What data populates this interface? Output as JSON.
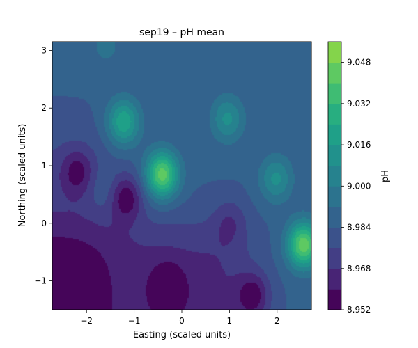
{
  "chart_data": {
    "type": "heatmap",
    "subtype": "filled-contour",
    "title": "sep19 – pH mean",
    "xlabel": "Easting (scaled units)",
    "ylabel": "Northing (scaled units)",
    "xlim": [
      -2.72,
      2.72
    ],
    "ylim": [
      -1.5,
      3.15
    ],
    "x_ticks": [
      -2,
      -1,
      0,
      1,
      2
    ],
    "y_ticks": [
      -1,
      0,
      1,
      2,
      3
    ],
    "x_tick_labels": [
      "−2",
      "−1",
      "0",
      "1",
      "2"
    ],
    "y_tick_labels": [
      "−1",
      "0",
      "1",
      "2",
      "3"
    ],
    "colorbar": {
      "label": "pH",
      "min": 8.952,
      "max": 9.056,
      "tick_values": [
        8.952,
        8.968,
        8.984,
        9.0,
        9.016,
        9.032,
        9.048
      ],
      "tick_labels": [
        "8.952",
        "8.968",
        "8.984",
        "9.000",
        "9.016",
        "9.032",
        "9.048"
      ],
      "levels": [
        8.952,
        8.96,
        8.968,
        8.976,
        8.984,
        8.992,
        9.0,
        9.008,
        9.016,
        9.024,
        9.032,
        9.04,
        9.048,
        9.056
      ],
      "colors": [
        "#450559",
        "#482475",
        "#433e85",
        "#3b528b",
        "#33638d",
        "#2c738e",
        "#26828e",
        "#21918c",
        "#1fa088",
        "#28ae80",
        "#3fbc73",
        "#5ec962",
        "#84d44b",
        "#addc30",
        "#d8e219",
        "#fde725"
      ]
    },
    "baseline": 8.985,
    "features": [
      {
        "kind": "peak",
        "x": -0.42,
        "y": 0.85,
        "value": 9.045
      },
      {
        "kind": "peak",
        "x": 2.55,
        "y": -0.37,
        "value": 9.046
      },
      {
        "kind": "peak",
        "x": -1.23,
        "y": 1.76,
        "value": 9.024
      },
      {
        "kind": "peak",
        "x": 0.95,
        "y": 1.82,
        "value": 9.01
      },
      {
        "kind": "peak",
        "x": 1.97,
        "y": 0.78,
        "value": 9.01
      },
      {
        "kind": "peak",
        "x": -1.6,
        "y": 3.1,
        "value": 8.995
      },
      {
        "kind": "peak",
        "x": -1.65,
        "y": 0.58,
        "value": 8.992
      },
      {
        "kind": "low",
        "x": -1.17,
        "y": 0.45,
        "value": 8.958
      },
      {
        "kind": "low",
        "x": -0.3,
        "y": -1.15,
        "value": 8.957
      },
      {
        "kind": "low",
        "x": -2.2,
        "y": 0.9,
        "value": 8.965
      },
      {
        "kind": "low",
        "x": 1.5,
        "y": -1.25,
        "value": 8.96
      },
      {
        "kind": "low",
        "x": 1.0,
        "y": 0.05,
        "value": 8.973
      }
    ]
  }
}
